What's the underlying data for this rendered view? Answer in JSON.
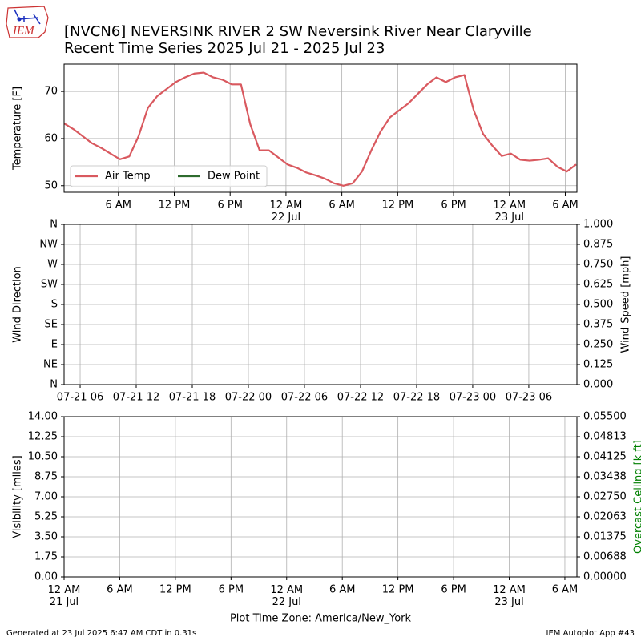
{
  "logo_text": "IEM",
  "footer_left": "Generated at 23 Jul 2025 6:47 AM CDT in 0.31s",
  "footer_right": "IEM Autoplot App #43",
  "chart_data": [
    {
      "type": "line",
      "title": "[NVCN6] NEVERSINK RIVER 2 SW Neversink River Near Claryville",
      "subtitle": "Recent Time Series 2025 Jul 21 - 2025 Jul 23",
      "ylabel": "Temperature [F]",
      "ylim": [
        48.6,
        75.8
      ],
      "yticks": [
        50,
        60,
        70
      ],
      "grid": true,
      "legend": "lower left",
      "xlim": [
        "2025-07-21T00:10",
        "2025-07-23T07:15"
      ],
      "xticks": [
        {
          "value": "2025-07-21T06:00",
          "label": "6 AM"
        },
        {
          "value": "2025-07-21T12:00",
          "label": "12 PM"
        },
        {
          "value": "2025-07-21T18:00",
          "label": "6 PM"
        },
        {
          "value": "2025-07-22T00:00",
          "label": "12 AM\n22 Jul"
        },
        {
          "value": "2025-07-22T06:00",
          "label": "6 AM"
        },
        {
          "value": "2025-07-22T12:00",
          "label": "12 PM"
        },
        {
          "value": "2025-07-22T18:00",
          "label": "6 PM"
        },
        {
          "value": "2025-07-23T00:00",
          "label": "12 AM\n23 Jul"
        },
        {
          "value": "2025-07-23T06:00",
          "label": "6 AM"
        }
      ],
      "x": [
        "2025-07-21T00:10",
        "2025-07-21T01:10",
        "2025-07-21T02:10",
        "2025-07-21T03:10",
        "2025-07-21T04:10",
        "2025-07-21T05:10",
        "2025-07-21T06:10",
        "2025-07-21T07:10",
        "2025-07-21T08:10",
        "2025-07-21T09:10",
        "2025-07-21T10:10",
        "2025-07-21T11:10",
        "2025-07-21T12:10",
        "2025-07-21T13:10",
        "2025-07-21T14:10",
        "2025-07-21T15:10",
        "2025-07-21T16:10",
        "2025-07-21T17:10",
        "2025-07-21T18:10",
        "2025-07-21T19:10",
        "2025-07-21T20:10",
        "2025-07-21T21:10",
        "2025-07-21T22:10",
        "2025-07-21T23:10",
        "2025-07-22T00:10",
        "2025-07-22T01:10",
        "2025-07-22T02:10",
        "2025-07-22T03:10",
        "2025-07-22T04:10",
        "2025-07-22T05:10",
        "2025-07-22T06:10",
        "2025-07-22T07:10",
        "2025-07-22T08:10",
        "2025-07-22T09:10",
        "2025-07-22T10:10",
        "2025-07-22T11:10",
        "2025-07-22T12:10",
        "2025-07-22T13:10",
        "2025-07-22T14:10",
        "2025-07-22T15:10",
        "2025-07-22T16:10",
        "2025-07-22T17:10",
        "2025-07-22T18:10",
        "2025-07-22T19:10",
        "2025-07-22T20:10",
        "2025-07-22T21:10",
        "2025-07-22T22:10",
        "2025-07-22T23:10",
        "2025-07-23T00:10",
        "2025-07-23T01:10",
        "2025-07-23T02:10",
        "2025-07-23T03:10",
        "2025-07-23T04:10",
        "2025-07-23T05:10",
        "2025-07-23T06:10",
        "2025-07-23T07:10"
      ],
      "series": [
        {
          "name": "Air Temp",
          "color": "#d9595f",
          "values": [
            63.2,
            62.0,
            60.5,
            59.0,
            58.0,
            56.8,
            55.6,
            56.2,
            60.5,
            66.5,
            69.0,
            70.5,
            72.0,
            73.0,
            73.8,
            74.0,
            73.0,
            72.5,
            71.5,
            71.5,
            63.0,
            57.5,
            57.5,
            56.0,
            54.5,
            53.8,
            52.8,
            52.2,
            51.5,
            50.5,
            50.0,
            50.5,
            53.0,
            57.5,
            61.5,
            64.5,
            66.0,
            67.5,
            69.5,
            71.5,
            73.0,
            72.0,
            73.0,
            73.5,
            66.0,
            61.0,
            58.5,
            56.3,
            56.8,
            55.5,
            55.3,
            55.5,
            55.8,
            54.0,
            53.0,
            54.5
          ]
        },
        {
          "name": "Dew Point",
          "color": "#2e6b2e",
          "values": [
            null,
            null,
            null,
            null,
            null,
            null,
            null,
            null,
            null,
            null,
            null,
            null,
            null,
            null,
            null,
            null,
            null,
            null,
            null,
            null,
            null,
            null,
            null,
            null,
            null,
            null,
            null,
            null,
            null,
            null,
            null,
            null,
            null,
            null,
            null,
            null,
            null,
            null,
            null,
            null,
            null,
            null,
            null,
            null,
            null,
            null,
            null,
            null,
            null,
            null,
            null,
            null,
            null,
            null,
            null,
            null
          ]
        }
      ]
    },
    {
      "type": "line",
      "ylabel": "Wind Direction",
      "y2label": "Wind Speed [mph]",
      "grid": true,
      "ylim": [
        0,
        360
      ],
      "yticks": [
        {
          "value": 0,
          "label": "N"
        },
        {
          "value": 45,
          "label": "NE"
        },
        {
          "value": 90,
          "label": "E"
        },
        {
          "value": 135,
          "label": "SE"
        },
        {
          "value": 180,
          "label": "S"
        },
        {
          "value": 225,
          "label": "SW"
        },
        {
          "value": 270,
          "label": "W"
        },
        {
          "value": 315,
          "label": "NW"
        },
        {
          "value": 360,
          "label": "N"
        }
      ],
      "y2lim": [
        0,
        1
      ],
      "y2ticks": [
        {
          "value": 0,
          "label": "0.000"
        },
        {
          "value": 0.125,
          "label": "0.125"
        },
        {
          "value": 0.25,
          "label": "0.250"
        },
        {
          "value": 0.375,
          "label": "0.375"
        },
        {
          "value": 0.5,
          "label": "0.500"
        },
        {
          "value": 0.625,
          "label": "0.625"
        },
        {
          "value": 0.75,
          "label": "0.750"
        },
        {
          "value": 0.875,
          "label": "0.875"
        },
        {
          "value": 1,
          "label": "1.000"
        }
      ],
      "xlim": [
        "2025-07-21T04:17",
        "2025-07-23T11:09"
      ],
      "xticks": [
        {
          "value": "2025-07-21T06:00",
          "label": "07-21 06"
        },
        {
          "value": "2025-07-21T12:00",
          "label": "07-21 12"
        },
        {
          "value": "2025-07-21T18:00",
          "label": "07-21 18"
        },
        {
          "value": "2025-07-22T00:00",
          "label": "07-22 00"
        },
        {
          "value": "2025-07-22T06:00",
          "label": "07-22 06"
        },
        {
          "value": "2025-07-22T12:00",
          "label": "07-22 12"
        },
        {
          "value": "2025-07-22T18:00",
          "label": "07-22 18"
        },
        {
          "value": "2025-07-23T00:00",
          "label": "07-23 00"
        },
        {
          "value": "2025-07-23T06:00",
          "label": "07-23 06"
        }
      ]
    },
    {
      "type": "line",
      "ylabel": "Visibility [miles]",
      "y2label": "Overcast Ceiling [k ft]",
      "y2label_color": "#008000",
      "xlabel": "Plot Time Zone: America/New_York",
      "grid": true,
      "ylim": [
        0,
        14
      ],
      "yticks": [
        {
          "value": 0,
          "label": "0.00"
        },
        {
          "value": 1.75,
          "label": "1.75"
        },
        {
          "value": 3.5,
          "label": "3.50"
        },
        {
          "value": 5.25,
          "label": "5.25"
        },
        {
          "value": 7,
          "label": "7.00"
        },
        {
          "value": 8.75,
          "label": "8.75"
        },
        {
          "value": 10.5,
          "label": "10.50"
        },
        {
          "value": 12.25,
          "label": "12.25"
        },
        {
          "value": 14,
          "label": "14.00"
        }
      ],
      "y2lim": [
        0,
        0.055
      ],
      "y2ticks": [
        {
          "value": 0,
          "label": "0.00000"
        },
        {
          "value": 0.006875,
          "label": "0.00688"
        },
        {
          "value": 0.01375,
          "label": "0.01375"
        },
        {
          "value": 0.020625,
          "label": "0.02063"
        },
        {
          "value": 0.0275,
          "label": "0.02750"
        },
        {
          "value": 0.034375,
          "label": "0.03438"
        },
        {
          "value": 0.04125,
          "label": "0.04125"
        },
        {
          "value": 0.048125,
          "label": "0.04813"
        },
        {
          "value": 0.055,
          "label": "0.05500"
        }
      ],
      "xlim": [
        "2025-07-21T00:00",
        "2025-07-23T07:18"
      ],
      "xticks": [
        {
          "value": "2025-07-21T00:00",
          "label": "12 AM\n21 Jul"
        },
        {
          "value": "2025-07-21T06:00",
          "label": "6 AM"
        },
        {
          "value": "2025-07-21T12:00",
          "label": "12 PM"
        },
        {
          "value": "2025-07-21T18:00",
          "label": "6 PM"
        },
        {
          "value": "2025-07-22T00:00",
          "label": "12 AM\n22 Jul"
        },
        {
          "value": "2025-07-22T06:00",
          "label": "6 AM"
        },
        {
          "value": "2025-07-22T12:00",
          "label": "12 PM"
        },
        {
          "value": "2025-07-22T18:00",
          "label": "6 PM"
        },
        {
          "value": "2025-07-23T00:00",
          "label": "12 AM\n23 Jul"
        },
        {
          "value": "2025-07-23T06:00",
          "label": "6 AM"
        }
      ]
    }
  ]
}
